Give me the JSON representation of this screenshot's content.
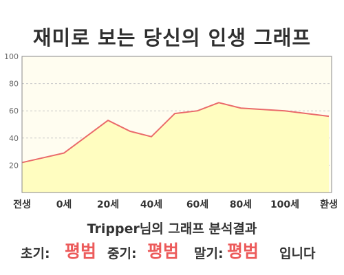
{
  "header": {
    "title": "재미로 보는 당신의 인생 그래프"
  },
  "chart_data": {
    "type": "area",
    "x_categories": [
      "전생",
      "0세",
      "20세",
      "40세",
      "60세",
      "80세",
      "100세",
      "환생"
    ],
    "points": [
      {
        "x": "전생",
        "y": 22
      },
      {
        "x": "0세",
        "y": 29
      },
      {
        "x": "20세",
        "y": 53
      },
      {
        "x": "30세",
        "y": 45
      },
      {
        "x": "40세",
        "y": 41
      },
      {
        "x": "50세",
        "y": 58
      },
      {
        "x": "60세",
        "y": 60
      },
      {
        "x": "70세",
        "y": 66
      },
      {
        "x": "80세",
        "y": 62
      },
      {
        "x": "90세",
        "y": 61
      },
      {
        "x": "100세",
        "y": 60
      },
      {
        "x": "환생",
        "y": 56
      }
    ],
    "y_ticks": [
      "20",
      "40",
      "60",
      "80",
      "100"
    ],
    "ylim": [
      0,
      100
    ],
    "grid": true,
    "colors": {
      "line": "#ea6a6a",
      "fill": "#fffdc0",
      "plot_bg": "#fffdf0"
    }
  },
  "result": {
    "summary": "Tripper님의 그래프 분석결과",
    "early_label": "초기:",
    "early_value": "평범",
    "mid_label": "중기:",
    "mid_value": "평범",
    "late_label": "말기:",
    "late_value": "평범",
    "suffix": "입니다"
  }
}
